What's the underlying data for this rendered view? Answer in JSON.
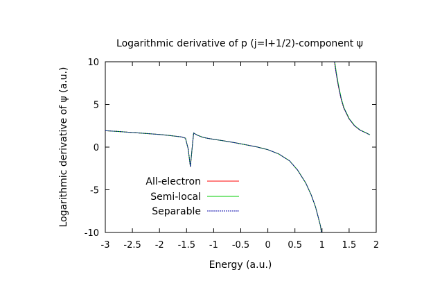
{
  "chart_data": {
    "type": "line",
    "title": "Logarithmic derivative of p (j=l+1/2)-component ψ",
    "xlabel": "Energy (a.u.)",
    "ylabel": "Logarithmic derivative of ψ (a.u.)",
    "xlim": [
      -3,
      2
    ],
    "ylim": [
      -10,
      10
    ],
    "xticks": [
      "-3",
      "-2.5",
      "-2",
      "-1.5",
      "-1",
      "-0.5",
      "0",
      "0.5",
      "1",
      "1.5",
      "2"
    ],
    "yticks": [
      "10",
      "5",
      "0",
      "-5",
      "-10"
    ],
    "grid": false,
    "legend_position": "bottom-left",
    "series": [
      {
        "name": "All-electron",
        "color": "#ff0000",
        "segments": [
          [
            [
              -3.0,
              1.92
            ],
            [
              -2.8,
              1.85
            ],
            [
              -2.6,
              1.76
            ],
            [
              -2.4,
              1.67
            ],
            [
              -2.2,
              1.58
            ],
            [
              -2.0,
              1.48
            ],
            [
              -1.8,
              1.35
            ],
            [
              -1.6,
              1.2
            ],
            [
              -1.52,
              1.05
            ],
            [
              -1.47,
              -0.2
            ],
            [
              -1.43,
              -2.3
            ],
            [
              -1.4,
              -0.3
            ],
            [
              -1.37,
              1.65
            ],
            [
              -1.3,
              1.4
            ],
            [
              -1.2,
              1.15
            ],
            [
              -1.1,
              1.02
            ],
            [
              -1.0,
              0.92
            ],
            [
              -0.8,
              0.72
            ],
            [
              -0.6,
              0.5
            ],
            [
              -0.4,
              0.27
            ],
            [
              -0.2,
              0.02
            ],
            [
              0.0,
              -0.3
            ],
            [
              0.2,
              -0.8
            ],
            [
              0.4,
              -1.6
            ],
            [
              0.55,
              -2.7
            ],
            [
              0.7,
              -4.2
            ],
            [
              0.8,
              -5.6
            ],
            [
              0.88,
              -7.0
            ],
            [
              0.93,
              -8.2
            ],
            [
              0.97,
              -9.2
            ],
            [
              0.99,
              -10.0
            ]
          ],
          [
            [
              1.23,
              10.0
            ],
            [
              1.26,
              8.7
            ],
            [
              1.3,
              7.2
            ],
            [
              1.35,
              5.7
            ],
            [
              1.4,
              4.6
            ],
            [
              1.5,
              3.3
            ],
            [
              1.6,
              2.5
            ],
            [
              1.7,
              2.0
            ],
            [
              1.8,
              1.7
            ],
            [
              1.88,
              1.45
            ]
          ]
        ]
      },
      {
        "name": "Semi-local",
        "color": "#00cc00",
        "segments": [
          [
            [
              -3.0,
              1.92
            ],
            [
              -2.8,
              1.85
            ],
            [
              -2.6,
              1.76
            ],
            [
              -2.4,
              1.67
            ],
            [
              -2.2,
              1.58
            ],
            [
              -2.0,
              1.48
            ],
            [
              -1.8,
              1.35
            ],
            [
              -1.6,
              1.2
            ],
            [
              -1.52,
              1.05
            ],
            [
              -1.47,
              -0.2
            ],
            [
              -1.43,
              -2.3
            ],
            [
              -1.4,
              -0.3
            ],
            [
              -1.37,
              1.65
            ],
            [
              -1.3,
              1.4
            ],
            [
              -1.2,
              1.15
            ],
            [
              -1.1,
              1.02
            ],
            [
              -1.0,
              0.92
            ],
            [
              -0.8,
              0.72
            ],
            [
              -0.6,
              0.5
            ],
            [
              -0.4,
              0.27
            ],
            [
              -0.2,
              0.02
            ],
            [
              0.0,
              -0.3
            ],
            [
              0.2,
              -0.8
            ],
            [
              0.4,
              -1.6
            ],
            [
              0.55,
              -2.7
            ],
            [
              0.7,
              -4.2
            ],
            [
              0.8,
              -5.6
            ],
            [
              0.88,
              -7.0
            ],
            [
              0.93,
              -8.2
            ],
            [
              0.97,
              -9.2
            ],
            [
              0.99,
              -10.0
            ]
          ],
          [
            [
              1.235,
              10.0
            ],
            [
              1.265,
              8.7
            ],
            [
              1.305,
              7.2
            ],
            [
              1.355,
              5.7
            ],
            [
              1.405,
              4.6
            ],
            [
              1.505,
              3.3
            ],
            [
              1.605,
              2.5
            ],
            [
              1.705,
              2.0
            ],
            [
              1.805,
              1.7
            ],
            [
              1.885,
              1.45
            ]
          ]
        ]
      },
      {
        "name": "Separable",
        "color": "#0000aa",
        "dashed": true,
        "segments": [
          [
            [
              -3.0,
              1.92
            ],
            [
              -2.8,
              1.85
            ],
            [
              -2.6,
              1.76
            ],
            [
              -2.4,
              1.67
            ],
            [
              -2.2,
              1.58
            ],
            [
              -2.0,
              1.48
            ],
            [
              -1.8,
              1.35
            ],
            [
              -1.6,
              1.2
            ],
            [
              -1.52,
              1.05
            ],
            [
              -1.47,
              -0.2
            ],
            [
              -1.43,
              -2.3
            ],
            [
              -1.4,
              -0.3
            ],
            [
              -1.37,
              1.65
            ],
            [
              -1.3,
              1.4
            ],
            [
              -1.2,
              1.15
            ],
            [
              -1.1,
              1.02
            ],
            [
              -1.0,
              0.92
            ],
            [
              -0.8,
              0.72
            ],
            [
              -0.6,
              0.5
            ],
            [
              -0.4,
              0.27
            ],
            [
              -0.2,
              0.02
            ],
            [
              0.0,
              -0.3
            ],
            [
              0.2,
              -0.8
            ],
            [
              0.4,
              -1.6
            ],
            [
              0.55,
              -2.7
            ],
            [
              0.7,
              -4.2
            ],
            [
              0.8,
              -5.6
            ],
            [
              0.88,
              -7.0
            ],
            [
              0.93,
              -8.2
            ],
            [
              0.97,
              -9.2
            ],
            [
              0.99,
              -10.0
            ]
          ],
          [
            [
              1.23,
              10.0
            ],
            [
              1.26,
              8.7
            ],
            [
              1.3,
              7.2
            ],
            [
              1.35,
              5.7
            ],
            [
              1.4,
              4.6
            ],
            [
              1.5,
              3.3
            ],
            [
              1.6,
              2.5
            ],
            [
              1.7,
              2.0
            ],
            [
              1.8,
              1.7
            ],
            [
              1.88,
              1.45
            ]
          ]
        ]
      }
    ]
  }
}
